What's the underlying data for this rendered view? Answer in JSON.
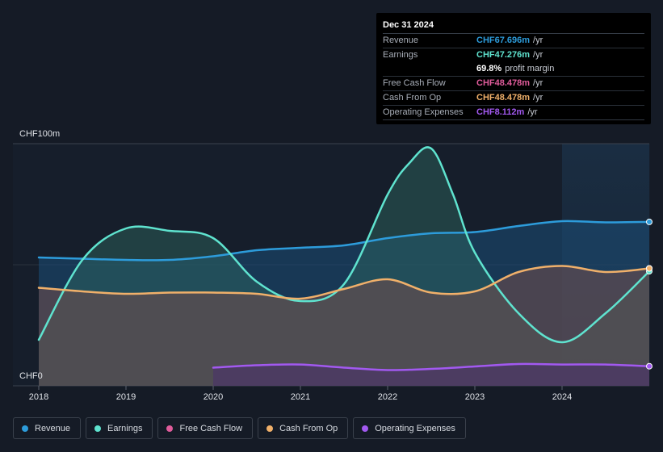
{
  "tooltip": {
    "date": "Dec 31 2024",
    "rows": [
      {
        "label": "Revenue",
        "value": "CHF67.696m",
        "unit": " /yr",
        "color": "#2d9cdb"
      },
      {
        "label": "Earnings",
        "value": "CHF47.276m",
        "unit": " /yr",
        "color": "#5fe3cf"
      },
      {
        "label": "",
        "value": "69.8%",
        "unit": " profit margin",
        "color": "#ffffff"
      },
      {
        "label": "Free Cash Flow",
        "value": "CHF48.478m",
        "unit": " /yr",
        "color": "#e05c9b"
      },
      {
        "label": "Cash From Op",
        "value": "CHF48.478m",
        "unit": " /yr",
        "color": "#f0b06a"
      },
      {
        "label": "Operating Expenses",
        "value": "CHF8.112m",
        "unit": " /yr",
        "color": "#a259f0"
      }
    ]
  },
  "legend": [
    {
      "label": "Revenue",
      "color": "#2d9cdb"
    },
    {
      "label": "Earnings",
      "color": "#5fe3cf"
    },
    {
      "label": "Free Cash Flow",
      "color": "#e05c9b"
    },
    {
      "label": "Cash From Op",
      "color": "#f0b06a"
    },
    {
      "label": "Operating Expenses",
      "color": "#a259f0"
    }
  ],
  "chart_data": {
    "type": "area",
    "title": "",
    "ylabel_top": "CHF100m",
    "ylabel_bottom": "CHF0",
    "ylim": [
      0,
      100
    ],
    "xlim": [
      2018,
      2025
    ],
    "x_ticks": [
      "2018",
      "2019",
      "2020",
      "2021",
      "2022",
      "2023",
      "2024"
    ],
    "series": [
      {
        "name": "Revenue",
        "color": "#2d9cdb",
        "x": [
          2018,
          2018.5,
          2019,
          2019.5,
          2020,
          2020.5,
          2021,
          2021.5,
          2022,
          2022.5,
          2023,
          2023.5,
          2024,
          2024.5,
          2025
        ],
        "values": [
          53,
          52.5,
          52,
          52,
          53.5,
          56,
          57,
          58,
          61,
          63,
          63.5,
          66,
          68,
          67.5,
          67.7
        ]
      },
      {
        "name": "Earnings",
        "color": "#5fe3cf",
        "x": [
          2018,
          2018.5,
          2019,
          2019.5,
          2020,
          2020.5,
          2021,
          2021.5,
          2022,
          2022.25,
          2022.5,
          2022.75,
          2023,
          2023.5,
          2024,
          2024.5,
          2025
        ],
        "values": [
          19,
          52,
          65,
          64,
          61,
          43,
          35,
          42,
          79,
          92,
          98,
          79,
          55,
          30,
          18,
          30,
          47.3
        ]
      },
      {
        "name": "Free Cash Flow",
        "color": "#e05c9b",
        "x": [
          2018,
          2018.5,
          2019,
          2019.5,
          2020,
          2020.5,
          2021,
          2021.5,
          2022,
          2022.5,
          2023,
          2023.5,
          2024,
          2024.5,
          2025
        ],
        "values": [
          40.5,
          39,
          38,
          38.5,
          38.5,
          38,
          36,
          40,
          44,
          38.5,
          39,
          47,
          49.5,
          47,
          48.5
        ]
      },
      {
        "name": "Cash From Op",
        "color": "#f0b06a",
        "x": [
          2018,
          2018.5,
          2019,
          2019.5,
          2020,
          2020.5,
          2021,
          2021.5,
          2022,
          2022.5,
          2023,
          2023.5,
          2024,
          2024.5,
          2025
        ],
        "values": [
          40.5,
          39,
          38,
          38.5,
          38.5,
          38,
          36,
          40,
          44,
          38.5,
          39,
          47,
          49.5,
          47,
          48.5
        ]
      },
      {
        "name": "Operating Expenses",
        "color": "#a259f0",
        "x": [
          2020,
          2020.5,
          2021,
          2021.5,
          2022,
          2022.5,
          2023,
          2023.5,
          2024,
          2024.5,
          2025
        ],
        "values": [
          7.5,
          8.5,
          8.8,
          7.5,
          6.5,
          7,
          8,
          9,
          8.8,
          8.8,
          8.1
        ]
      }
    ]
  }
}
